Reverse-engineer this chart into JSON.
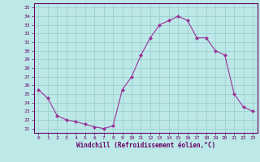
{
  "x": [
    0,
    1,
    2,
    3,
    4,
    5,
    6,
    7,
    8,
    9,
    10,
    11,
    12,
    13,
    14,
    15,
    16,
    17,
    18,
    19,
    20,
    21,
    22,
    23
  ],
  "y": [
    25.5,
    24.5,
    22.5,
    22.0,
    21.8,
    21.5,
    21.2,
    21.0,
    21.3,
    25.5,
    27.0,
    29.5,
    31.5,
    33.0,
    33.5,
    34.0,
    33.5,
    31.5,
    31.5,
    30.0,
    29.5,
    25.0,
    23.5,
    23.0
  ],
  "line_color": "#993399",
  "marker": "D",
  "marker_size": 2.0,
  "bg_color": "#bce8e8",
  "grid_color": "#99cccc",
  "xlabel": "Windchill (Refroidissement éolien,°C)",
  "ylabel_ticks": [
    21,
    22,
    23,
    24,
    25,
    26,
    27,
    28,
    29,
    30,
    31,
    32,
    33,
    34,
    35
  ],
  "ylim": [
    20.5,
    35.5
  ],
  "xlim": [
    -0.5,
    23.5
  ],
  "axis_label_color": "#660066",
  "tick_color": "#660066",
  "border_color": "#660066",
  "tick_fontsize": 4.5,
  "xlabel_fontsize": 5.5
}
